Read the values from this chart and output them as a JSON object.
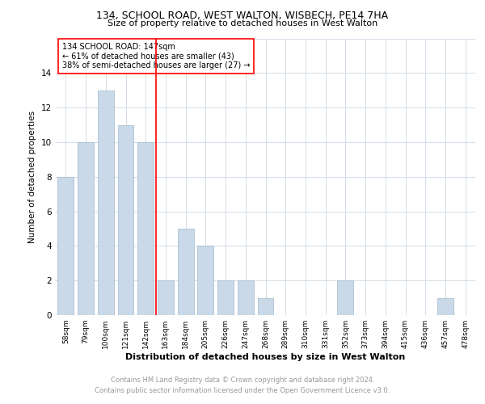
{
  "title": "134, SCHOOL ROAD, WEST WALTON, WISBECH, PE14 7HA",
  "subtitle": "Size of property relative to detached houses in West Walton",
  "xlabel": "Distribution of detached houses by size in West Walton",
  "ylabel": "Number of detached properties",
  "categories": [
    "58sqm",
    "79sqm",
    "100sqm",
    "121sqm",
    "142sqm",
    "163sqm",
    "184sqm",
    "205sqm",
    "226sqm",
    "247sqm",
    "268sqm",
    "289sqm",
    "310sqm",
    "331sqm",
    "352sqm",
    "373sqm",
    "394sqm",
    "415sqm",
    "436sqm",
    "457sqm",
    "478sqm"
  ],
  "values": [
    8,
    10,
    13,
    11,
    10,
    2,
    5,
    4,
    2,
    2,
    1,
    0,
    0,
    0,
    2,
    0,
    0,
    0,
    0,
    1,
    0
  ],
  "bar_color": "#c9d9e8",
  "bar_edge_color": "#a0b8cc",
  "bar_width": 0.8,
  "vline_x": 4.5,
  "vline_color": "red",
  "annotation_line1": "134 SCHOOL ROAD: 147sqm",
  "annotation_line2": "← 61% of detached houses are smaller (43)",
  "annotation_line3": "38% of semi-detached houses are larger (27) →",
  "ylim": [
    0,
    16
  ],
  "yticks": [
    0,
    2,
    4,
    6,
    8,
    10,
    12,
    14,
    16
  ],
  "footer_line1": "Contains HM Land Registry data © Crown copyright and database right 2024.",
  "footer_line2": "Contains public sector information licensed under the Open Government Licence v3.0.",
  "grid_color": "#d4dce8"
}
